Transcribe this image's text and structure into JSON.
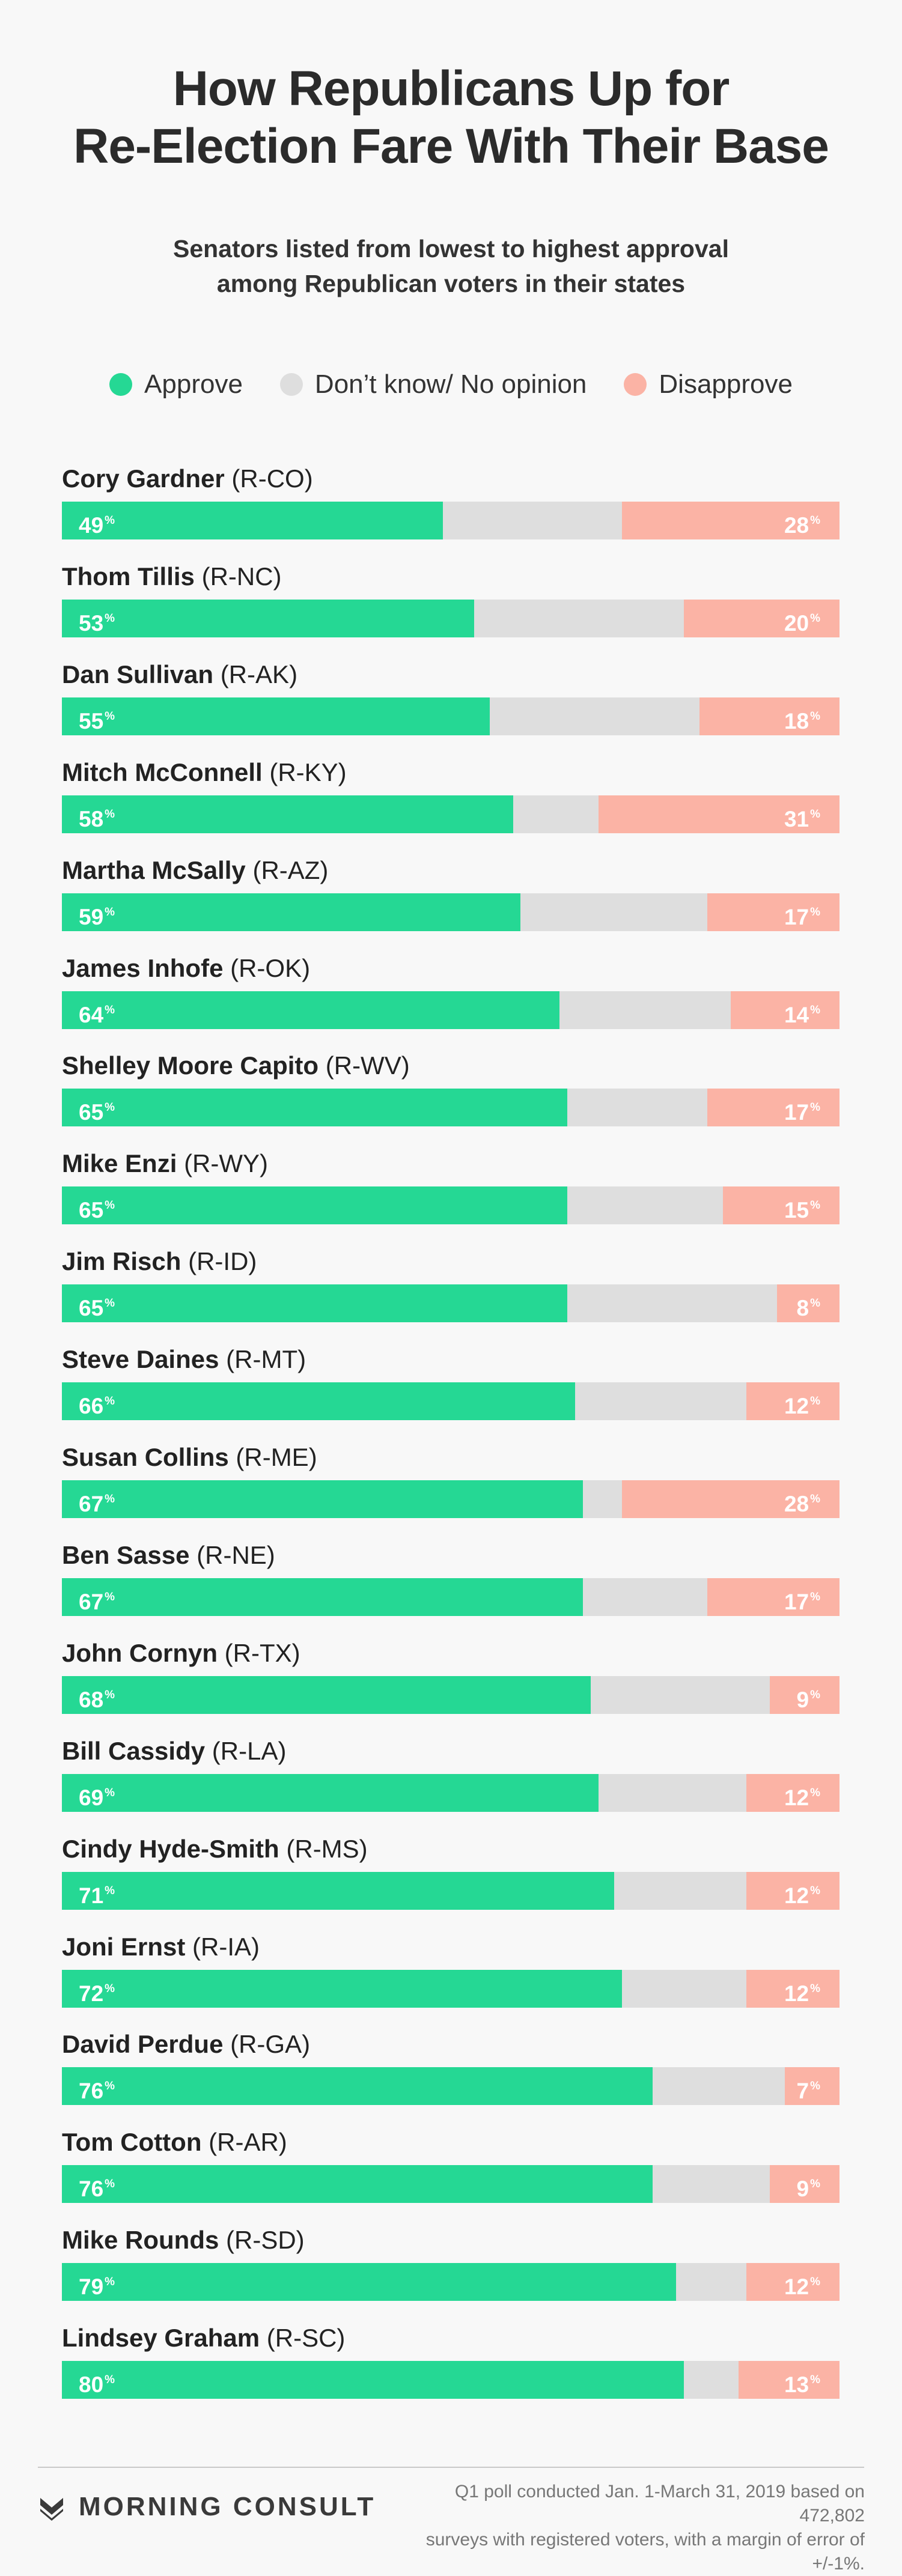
{
  "title_line1": "How Republicans Up for",
  "title_line2": "Re-Election Fare With Their Base",
  "subtitle_line1": "Senators listed from lowest to highest approval",
  "subtitle_line2": "among Republican voters in their states",
  "legend": {
    "approve": "Approve",
    "no_opinion": "Don’t know/ No opinion",
    "disapprove": "Disapprove"
  },
  "colors": {
    "approve": "#25d894",
    "no_opinion": "#dedede",
    "disapprove": "#fbb3a5",
    "background": "#f8f8f8"
  },
  "percent_sign": "%",
  "chart_data": {
    "type": "bar",
    "orientation": "horizontal-stacked",
    "categories": [
      {
        "name": "Cory Gardner",
        "party_state": "(R-CO)"
      },
      {
        "name": "Thom Tillis",
        "party_state": "(R-NC)"
      },
      {
        "name": "Dan Sullivan",
        "party_state": "(R-AK)"
      },
      {
        "name": "Mitch McConnell",
        "party_state": "(R-KY)"
      },
      {
        "name": "Martha McSally",
        "party_state": "(R-AZ)"
      },
      {
        "name": "James Inhofe",
        "party_state": "(R-OK)"
      },
      {
        "name": "Shelley Moore Capito",
        "party_state": "(R-WV)"
      },
      {
        "name": "Mike Enzi",
        "party_state": "(R-WY)"
      },
      {
        "name": "Jim Risch",
        "party_state": "(R-ID)"
      },
      {
        "name": "Steve Daines",
        "party_state": "(R-MT)"
      },
      {
        "name": "Susan Collins",
        "party_state": "(R-ME)"
      },
      {
        "name": "Ben Sasse",
        "party_state": "(R-NE)"
      },
      {
        "name": "John Cornyn",
        "party_state": "(R-TX)"
      },
      {
        "name": "Bill Cassidy",
        "party_state": "(R-LA)"
      },
      {
        "name": "Cindy Hyde-Smith",
        "party_state": "(R-MS)"
      },
      {
        "name": "Joni Ernst",
        "party_state": "(R-IA)"
      },
      {
        "name": "David Perdue",
        "party_state": "(R-GA)"
      },
      {
        "name": "Tom Cotton",
        "party_state": "(R-AR)"
      },
      {
        "name": "Mike Rounds",
        "party_state": "(R-SD)"
      },
      {
        "name": "Lindsey Graham",
        "party_state": "(R-SC)"
      }
    ],
    "series": [
      {
        "name": "Approve",
        "values": [
          49,
          53,
          55,
          58,
          59,
          64,
          65,
          65,
          65,
          66,
          67,
          67,
          68,
          69,
          71,
          72,
          76,
          76,
          79,
          80
        ]
      },
      {
        "name": "Disapprove",
        "values": [
          28,
          20,
          18,
          31,
          17,
          14,
          17,
          15,
          8,
          12,
          28,
          17,
          9,
          12,
          12,
          12,
          7,
          9,
          12,
          13
        ]
      }
    ],
    "xlim": [
      0,
      100
    ],
    "legend_position": "top-center"
  },
  "footer": {
    "logo_text": "MORNING CONSULT",
    "note_line1": "Q1 poll conducted Jan. 1-March 31, 2019 based on 472,802",
    "note_line2": "surveys with registered voters, with a margin of error of +/-1%."
  }
}
